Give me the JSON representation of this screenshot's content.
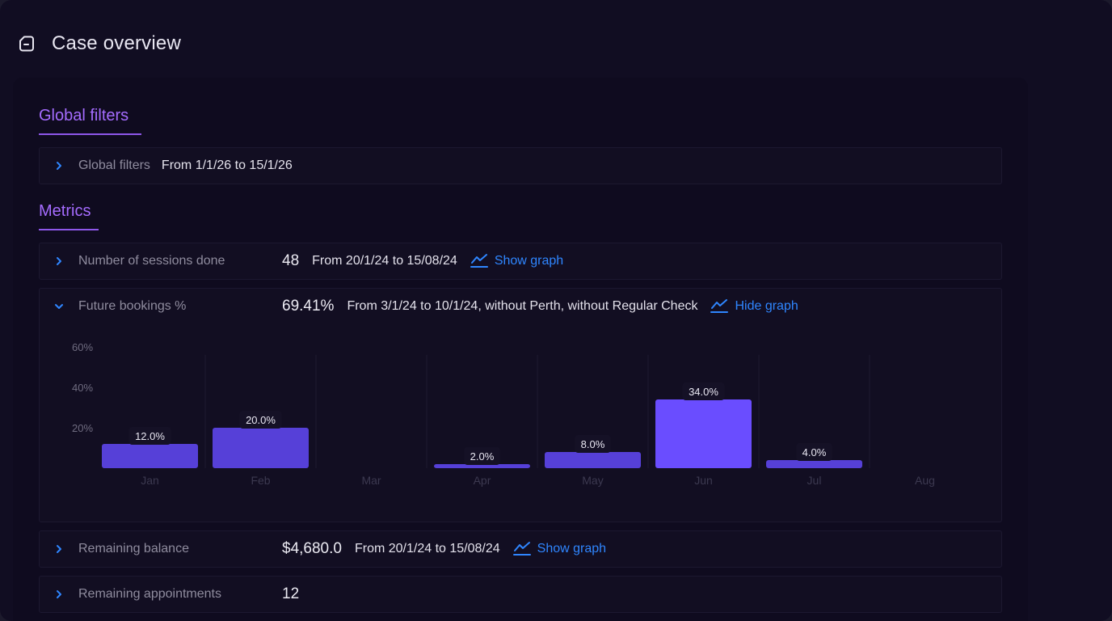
{
  "header": {
    "title": "Case overview",
    "icon": "document-icon"
  },
  "sections": {
    "global_filters_title": "Global filters",
    "metrics_title": "Metrics"
  },
  "global_filters": {
    "label": "Global filters",
    "value": "From 1/1/26 to 15/1/26"
  },
  "metrics": {
    "sessions": {
      "label": "Number of sessions done",
      "value": "48",
      "range": "From 20/1/24 to 15/08/24",
      "link": "Show graph"
    },
    "future_bookings": {
      "label": "Future bookings %",
      "value": "69.41%",
      "range": "From 3/1/24 to 10/1/24, without Perth, without Regular Check",
      "link": "Hide graph"
    },
    "balance": {
      "label": "Remaining balance",
      "value": "$4,680.0",
      "range": "From 20/1/24 to 15/08/24",
      "link": "Show graph"
    },
    "appointments": {
      "label": "Remaining appointments",
      "value": "12"
    }
  },
  "colors": {
    "accent": "#a56cff",
    "link": "#2f86ff",
    "bar_highlight": "#6a4dff",
    "bar_normal": "#5640d8"
  },
  "chart_data": {
    "type": "bar",
    "categories": [
      "Jan",
      "Feb",
      "Mar",
      "Apr",
      "May",
      "Jun",
      "Jul",
      "Aug"
    ],
    "values": [
      12.0,
      20.0,
      null,
      2.0,
      8.0,
      34.0,
      4.0,
      null
    ],
    "data_labels": [
      "12.0%",
      "20.0%",
      "",
      "2.0%",
      "8.0%",
      "34.0%",
      "4.0%",
      ""
    ],
    "y_ticks": [
      "20%",
      "40%",
      "60%"
    ],
    "y_tick_values": [
      20,
      40,
      60
    ],
    "ylim": [
      0,
      60
    ],
    "grid": true
  }
}
